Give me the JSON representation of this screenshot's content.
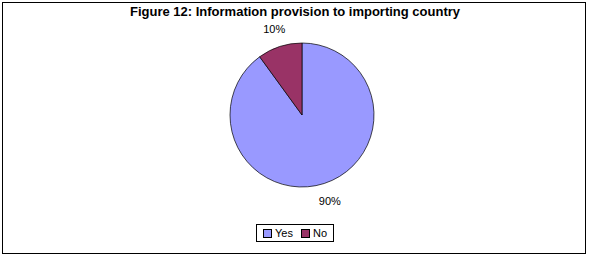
{
  "chart_data": {
    "type": "pie",
    "title": "Figure 12: Information provision to importing country",
    "categories": [
      "Yes",
      "No"
    ],
    "values": [
      90,
      10
    ],
    "value_labels": [
      "90%",
      "10%"
    ],
    "colors": [
      "#9999ff",
      "#993366"
    ],
    "data_labels": true,
    "legend": "bottom"
  }
}
